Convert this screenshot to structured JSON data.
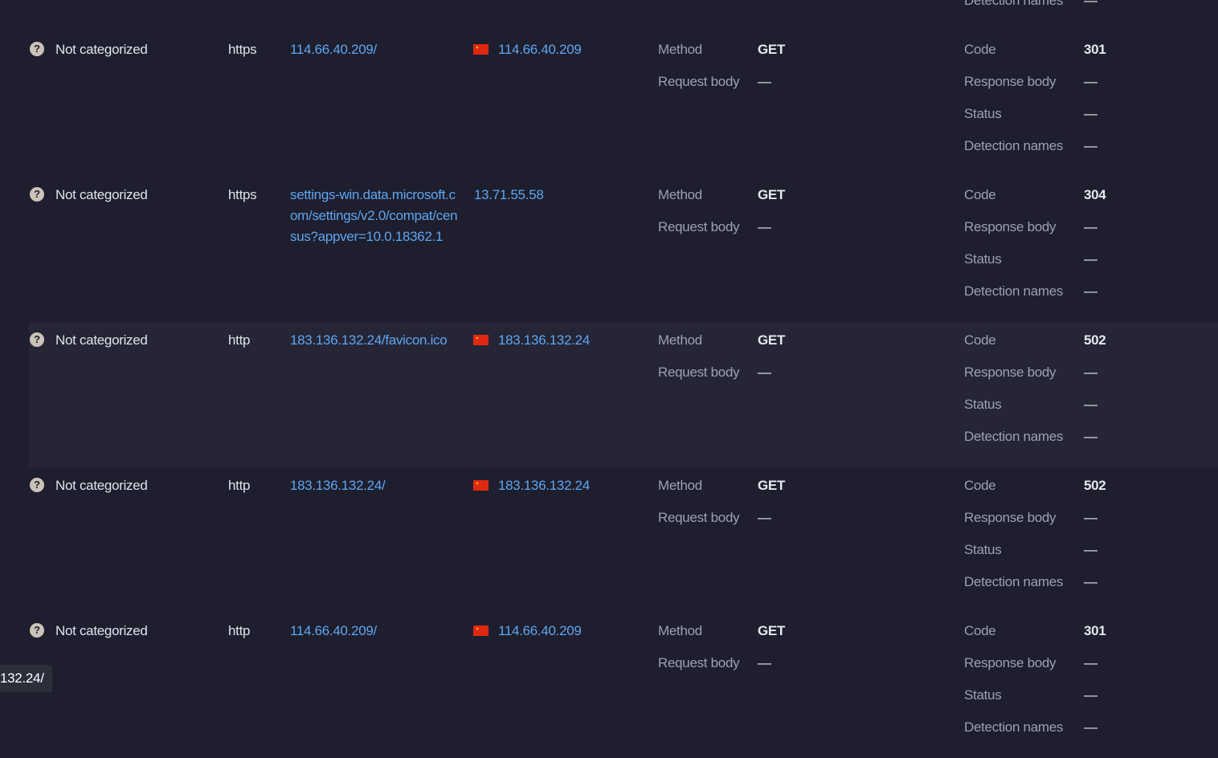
{
  "labels": {
    "method": "Method",
    "request_body": "Request body",
    "code": "Code",
    "response_body": "Response body",
    "status": "Status",
    "detection_names": "Detection names",
    "empty": "—"
  },
  "icons": {
    "category": "question-circle-icon",
    "country": "china-flag-icon"
  },
  "colors": {
    "background": "#1e1e2e",
    "highlight_row": "#252536",
    "link": "#5ea6f0"
  },
  "partial_row": {
    "detection_names": "—"
  },
  "rows": [
    {
      "category": "Not categorized",
      "protocol": "https",
      "url": "114.66.40.209/",
      "ip": "114.66.40.209",
      "flag": true,
      "method": "GET",
      "request_body": "—",
      "code": "301",
      "response_body": "—",
      "status": "—",
      "detection_names": "—"
    },
    {
      "category": "Not categorized",
      "protocol": "https",
      "url": "settings-win.data.microsoft.com/settings/v2.0/compat/census?appver=10.0.18362.1",
      "ip": "13.71.55.58",
      "flag": false,
      "method": "GET",
      "request_body": "—",
      "code": "304",
      "response_body": "—",
      "status": "—",
      "detection_names": "—"
    },
    {
      "category": "Not categorized",
      "protocol": "http",
      "url": "183.136.132.24/favicon.ico",
      "ip": "183.136.132.24",
      "flag": true,
      "method": "GET",
      "request_body": "—",
      "code": "502",
      "response_body": "—",
      "status": "—",
      "detection_names": "—",
      "highlighted": true
    },
    {
      "category": "Not categorized",
      "protocol": "http",
      "url": "183.136.132.24/",
      "ip": "183.136.132.24",
      "flag": true,
      "method": "GET",
      "request_body": "—",
      "code": "502",
      "response_body": "—",
      "status": "—",
      "detection_names": "—"
    },
    {
      "category": "Not categorized",
      "protocol": "http",
      "url": "114.66.40.209/",
      "ip": "114.66.40.209",
      "flag": true,
      "method": "GET",
      "request_body": "—",
      "code": "301",
      "response_body": "—",
      "status": "—",
      "detection_names": "—"
    }
  ],
  "tooltip": "132.24/"
}
